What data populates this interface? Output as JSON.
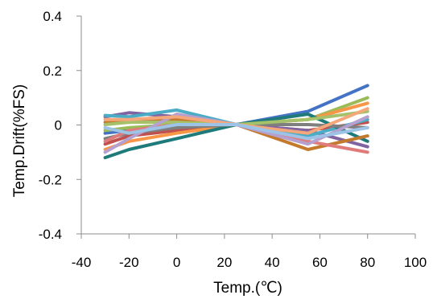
{
  "chart_data": {
    "type": "line",
    "title": "",
    "xlabel": "Temp.(℃)",
    "ylabel": "Temp.Drift(%FS)",
    "xlim": [
      -40,
      100
    ],
    "ylim": [
      -0.4,
      0.4
    ],
    "x_ticks": [
      -40,
      -20,
      0,
      20,
      40,
      60,
      80,
      100
    ],
    "y_ticks": [
      0.4,
      0.2,
      0,
      -0.2,
      -0.4
    ],
    "x_tick_labels": [
      "-40",
      "-20",
      "0",
      "20",
      "40",
      "60",
      "80",
      "100"
    ],
    "y_tick_labels": [
      "0.4",
      "0.2",
      "0",
      "-0.2",
      "-0.4"
    ],
    "grid": false,
    "legend": "none",
    "x": [
      -30,
      -20,
      0,
      25,
      55,
      80
    ],
    "series": [
      {
        "color": "#4472C4",
        "values": [
          -0.03,
          -0.02,
          0.0,
          0,
          0.05,
          0.145
        ]
      },
      {
        "color": "#C0504D",
        "values": [
          -0.07,
          -0.04,
          -0.02,
          0,
          -0.02,
          0.01
        ]
      },
      {
        "color": "#9BBB59",
        "values": [
          -0.02,
          -0.01,
          0.0,
          0,
          0.02,
          0.1
        ]
      },
      {
        "color": "#8064A2",
        "values": [
          0.03,
          0.045,
          0.03,
          0,
          -0.02,
          -0.08
        ]
      },
      {
        "color": "#4BACC6",
        "values": [
          0.035,
          0.03,
          0.055,
          0,
          -0.04,
          0.02
        ]
      },
      {
        "color": "#F79646",
        "values": [
          -0.09,
          -0.06,
          -0.03,
          0,
          0.02,
          0.08
        ]
      },
      {
        "color": "#1F7A7A",
        "values": [
          -0.12,
          -0.09,
          -0.05,
          0,
          0.04,
          -0.06
        ]
      },
      {
        "color": "#C47A2C",
        "values": [
          0.01,
          0.01,
          0.02,
          0,
          -0.09,
          -0.04
        ]
      },
      {
        "color": "#7F7F7F",
        "values": [
          -0.05,
          -0.03,
          -0.01,
          0,
          0.0,
          -0.01
        ]
      },
      {
        "color": "#E07B7B",
        "values": [
          -0.06,
          -0.02,
          0.0,
          0,
          -0.06,
          -0.1
        ]
      },
      {
        "color": "#A5C26B",
        "values": [
          0.0,
          0.01,
          0.01,
          0,
          0.02,
          0.05
        ]
      },
      {
        "color": "#B5A0D0",
        "values": [
          -0.1,
          -0.05,
          0.04,
          0,
          -0.07,
          0.03
        ]
      },
      {
        "color": "#F4A77A",
        "values": [
          0.02,
          0.02,
          0.03,
          0,
          -0.03,
          0.06
        ]
      },
      {
        "color": "#9DC3E6",
        "values": [
          -0.01,
          -0.03,
          0.0,
          0,
          -0.05,
          -0.01
        ]
      }
    ]
  }
}
